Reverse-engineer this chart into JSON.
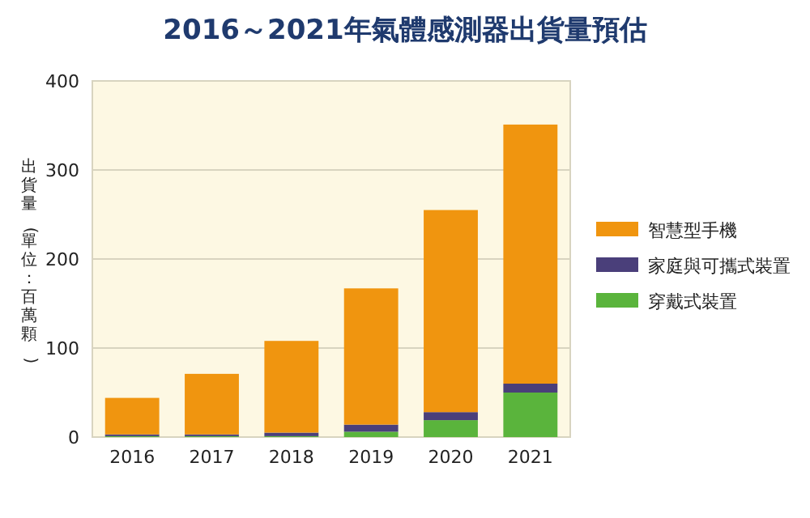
{
  "chart_data": {
    "type": "bar",
    "title": "2016～2021年氣體感測器出貨量預估",
    "ylabel": "出貨量(單位：百萬顆)",
    "categories": [
      "2016",
      "2017",
      "2018",
      "2019",
      "2020",
      "2021"
    ],
    "stacked": true,
    "series": [
      {
        "name": "穿戴式裝置",
        "color": "#5ab43c",
        "values": [
          1,
          1,
          1,
          6,
          19,
          50
        ]
      },
      {
        "name": "家庭與可攜式裝置",
        "color": "#4a3f7a",
        "values": [
          2,
          2,
          4,
          8,
          9,
          10
        ]
      },
      {
        "name": "智慧型手機",
        "color": "#f0950f",
        "values": [
          41,
          68,
          103,
          153,
          227,
          291
        ]
      }
    ],
    "ylim": [
      0,
      400
    ],
    "yticks": [
      0,
      100,
      200,
      300,
      400
    ],
    "grid": "y",
    "legend": "right"
  }
}
